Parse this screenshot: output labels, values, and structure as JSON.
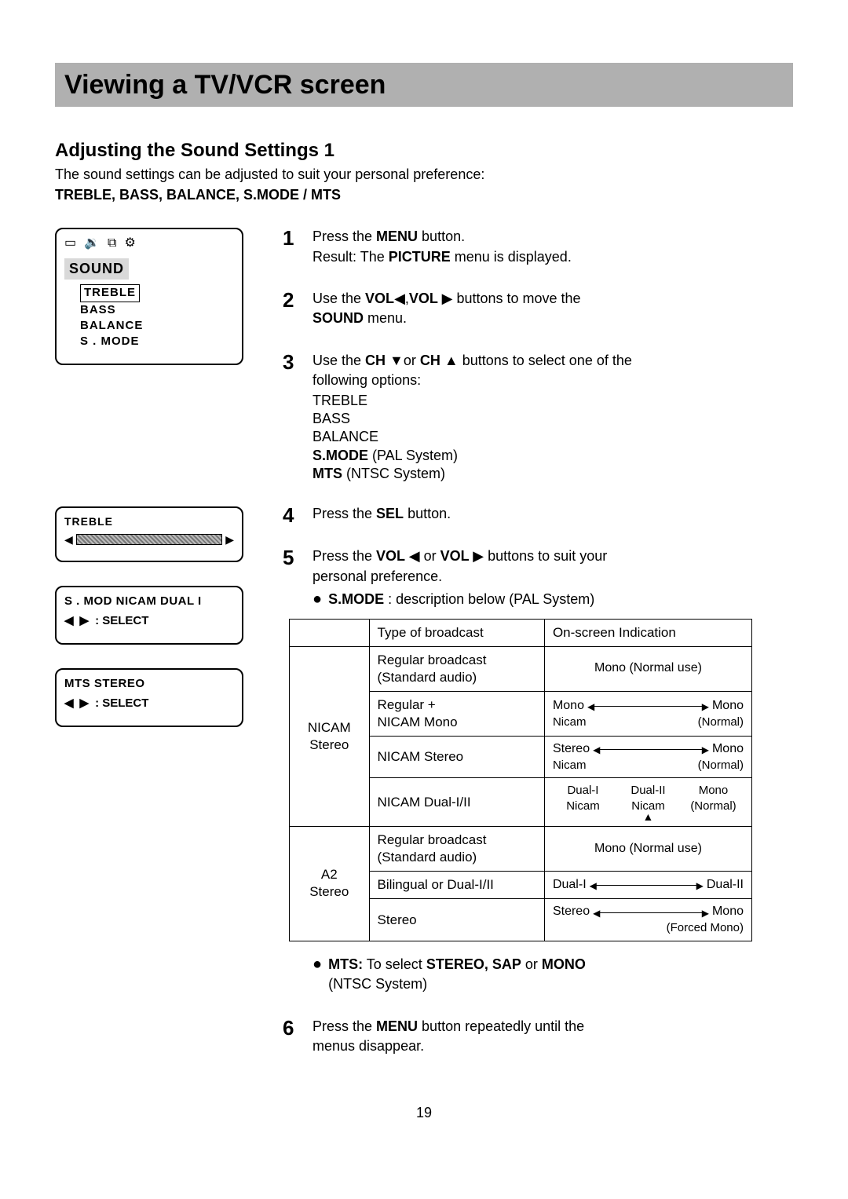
{
  "page": {
    "title": "Viewing a TV/VCR screen",
    "subtitle": "Adjusting the Sound Settings 1",
    "intro": "The sound settings can be adjusted to suit your personal preference:",
    "params": "TREBLE, BASS, BALANCE, S.MODE / MTS",
    "pagenum": "19"
  },
  "osd": {
    "sound_title": "SOUND",
    "menu_items": [
      "TREBLE",
      "BASS",
      "BALANCE",
      "S . MODE"
    ],
    "treble_title": "TREBLE",
    "status_line": "S . MOD NICAM DUAL I",
    "select_label": ":  SELECT",
    "mts_line": "MTS   STEREO",
    "mts_select": ":  SELECT",
    "icons": [
      "▭",
      "🔉",
      "⧉",
      "⚙"
    ],
    "arrow_left": "◀",
    "arrow_right": "▶",
    "slider_colors": {
      "border": "#000000",
      "fill": "#888888"
    }
  },
  "steps": {
    "s1": {
      "num": "1",
      "a": "Press the ",
      "b": "MENU",
      "c": " button.",
      "d": "Result: The ",
      "e": "PICTURE",
      "f": " menu is displayed."
    },
    "s2": {
      "num": "2",
      "a": "Use the ",
      "b": "VOL",
      "c": ",",
      "d": "VOL ",
      "e": " buttons to move the",
      "f": "SOUND",
      "g": " menu."
    },
    "s3": {
      "num": "3",
      "a": "Use the ",
      "b": "CH ",
      "c": "or ",
      "d": "CH ",
      "e": " buttons to select one of the",
      "f": "following options:",
      "opts": {
        "o1": "TREBLE",
        "o2": "BASS",
        "o3": "BALANCE",
        "o4a": "S.MODE",
        "o4b": " (PAL System)",
        "o5a": "MTS",
        "o5b": " (NTSC System)"
      }
    },
    "s4": {
      "num": "4",
      "a": "Press the ",
      "b": "SEL",
      "c": " button."
    },
    "s5": {
      "num": "5",
      "a": "Press the ",
      "b": "VOL ",
      "c": " or ",
      "d": "VOL ",
      "e": " buttons to suit your",
      "f": "personal preference.",
      "smode_a": "S.MODE",
      "smode_b": " : description below (PAL System)",
      "mts_a": "MTS:",
      "mts_b": " To select ",
      "mts_c": "STEREO, SAP",
      "mts_d": " or ",
      "mts_e": "MONO",
      "mts_f": "(NTSC System)"
    },
    "s6": {
      "num": "6",
      "a": "Press the ",
      "b": "MENU",
      "c": " button repeatedly until the",
      "d": "menus disappear."
    }
  },
  "table": {
    "head": {
      "c1": "",
      "c2": "Type of broadcast",
      "c3": "On-screen Indication"
    },
    "groups": [
      {
        "name": "NICAM\nStereo",
        "rows": [
          {
            "type": "Regular broadcast\n(Standard audio)",
            "ind": {
              "mode": "plain",
              "text": "Mono (Normal use)"
            }
          },
          {
            "type": "Regular +\nNICAM Mono",
            "ind": {
              "mode": "arrow2line",
              "left": "Mono",
              "right": "Mono",
              "subleft": "Nicam",
              "subright": "(Normal)"
            }
          },
          {
            "type": "NICAM Stereo",
            "ind": {
              "mode": "arrow2line",
              "left": "Stereo",
              "right": "Mono",
              "subleft": "Nicam",
              "subright": "(Normal)"
            }
          },
          {
            "type": "NICAM Dual-I/II",
            "ind": {
              "mode": "dual3",
              "c1": "Dual-I",
              "c2": "Dual-II",
              "c3": "Mono",
              "s1": "Nicam",
              "s2": "Nicam",
              "s3": "(Normal)"
            }
          }
        ]
      },
      {
        "name": "A2\nStereo",
        "rows": [
          {
            "type": "Regular broadcast\n(Standard audio)",
            "ind": {
              "mode": "plain",
              "text": "Mono (Normal use)"
            }
          },
          {
            "type": "Bilingual or Dual-I/II",
            "ind": {
              "mode": "arrow1line",
              "left": "Dual-I",
              "right": "Dual-II"
            }
          },
          {
            "type": "Stereo",
            "ind": {
              "mode": "arrow2line",
              "left": "Stereo",
              "right": "Mono",
              "subleft": "",
              "subright": "(Forced Mono)"
            }
          }
        ]
      }
    ]
  }
}
